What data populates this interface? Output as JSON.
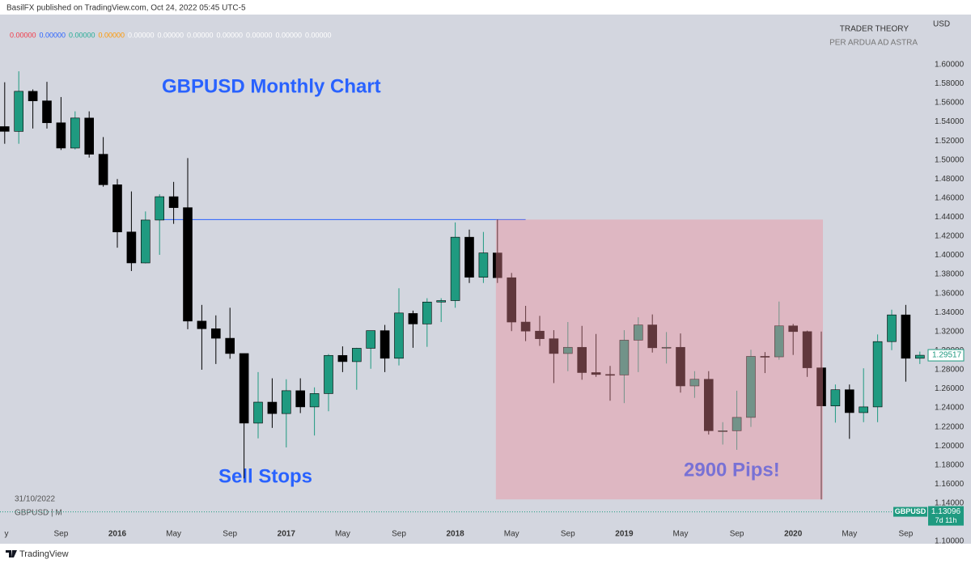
{
  "header": "BasilFX published on TradingView.com, Oct 24, 2022 05:45 UTC-5",
  "footer": "TradingView",
  "watermark": [
    "TRADER THEORY",
    "PER ARDUA AD ASTRA"
  ],
  "indicator_values": [
    {
      "label": "0.00000",
      "color": "#f23645"
    },
    {
      "label": "0.00000",
      "color": "#2962ff"
    },
    {
      "label": "0.00000",
      "color": "#22ab94"
    },
    {
      "label": "0.00000",
      "color": "#ff9800"
    },
    {
      "label": "0.00000",
      "color": "#ffffff"
    },
    {
      "label": "0.00000",
      "color": "#ffffff"
    },
    {
      "label": "0.00000",
      "color": "#ffffff"
    },
    {
      "label": "0.00000",
      "color": "#ffffff"
    },
    {
      "label": "0.00000",
      "color": "#ffffff"
    },
    {
      "label": "0.00000",
      "color": "#ffffff"
    },
    {
      "label": "0.00000",
      "color": "#ffffff"
    }
  ],
  "chart_data": {
    "type": "candlestick",
    "title": "GBPUSD Monthly Chart",
    "symbol": "GBPUSD | M",
    "date": "31/10/2022",
    "y_unit": "USD",
    "annotations": [
      "Sell Stops",
      "2900 Pips!"
    ],
    "up_color": "#1f9a80",
    "down_color": "#000000",
    "grid": false,
    "open": [
      1.535,
      1.53,
      1.572,
      1.562,
      1.539,
      1.5125,
      1.544,
      1.506,
      1.474,
      1.4245,
      1.392,
      1.437,
      1.4615,
      1.45,
      1.331,
      1.323,
      1.313,
      1.297,
      1.224,
      1.246,
      1.234,
      1.258,
      1.241,
      1.255,
      1.295,
      1.2885,
      1.3025,
      1.321,
      1.292,
      1.339,
      1.328,
      1.351,
      1.3525,
      1.419,
      1.377,
      1.4025,
      1.3765,
      1.33,
      1.3205,
      1.3125,
      1.297,
      1.3035,
      1.277,
      1.275,
      1.2745,
      1.311,
      1.327,
      1.303,
      1.3035,
      1.263,
      1.27,
      1.216,
      1.216,
      1.23,
      1.294,
      1.2935,
      1.326,
      1.32,
      1.282,
      1.242,
      1.259,
      1.235,
      1.241,
      1.3095,
      1.3375,
      1.292
    ],
    "high": [
      1.5815,
      1.593,
      1.574,
      1.582,
      1.566,
      1.551,
      1.551,
      1.524,
      1.48,
      1.467,
      1.446,
      1.464,
      1.477,
      1.502,
      1.348,
      1.337,
      1.345,
      1.297,
      1.2775,
      1.271,
      1.27,
      1.271,
      1.2615,
      1.2965,
      1.3045,
      1.303,
      1.321,
      1.327,
      1.3655,
      1.342,
      1.355,
      1.355,
      1.4345,
      1.427,
      1.4245,
      1.4375,
      1.3815,
      1.347,
      1.3365,
      1.3215,
      1.33,
      1.326,
      1.3175,
      1.284,
      1.3215,
      1.335,
      1.338,
      1.3195,
      1.318,
      1.2785,
      1.2785,
      1.225,
      1.258,
      1.301,
      1.2985,
      1.3515,
      1.328,
      1.321,
      1.32,
      1.2645,
      1.2645,
      1.2815,
      1.317,
      1.343,
      1.348,
      1.299
    ],
    "low": [
      1.517,
      1.517,
      1.533,
      1.533,
      1.5105,
      1.511,
      1.5025,
      1.472,
      1.408,
      1.3835,
      1.3915,
      1.4005,
      1.433,
      1.3225,
      1.28,
      1.286,
      1.2915,
      1.166,
      1.208,
      1.219,
      1.1985,
      1.2345,
      1.211,
      1.2365,
      1.2775,
      1.259,
      1.281,
      1.2775,
      1.2845,
      1.303,
      1.304,
      1.33,
      1.345,
      1.371,
      1.371,
      1.371,
      1.3205,
      1.31,
      1.305,
      1.266,
      1.2785,
      1.2695,
      1.2725,
      1.2475,
      1.245,
      1.2775,
      1.298,
      1.2865,
      1.256,
      1.2505,
      1.212,
      1.2015,
      1.196,
      1.22,
      1.2765,
      1.2905,
      1.2955,
      1.2725,
      1.144,
      1.2245,
      1.2075,
      1.225,
      1.225,
      1.3005,
      1.2675,
      1.286
    ],
    "close": [
      1.53,
      1.572,
      1.562,
      1.539,
      1.5125,
      1.544,
      1.506,
      1.474,
      1.4245,
      1.392,
      1.437,
      1.4615,
      1.45,
      1.331,
      1.323,
      1.313,
      1.297,
      1.224,
      1.246,
      1.234,
      1.258,
      1.241,
      1.255,
      1.295,
      1.2885,
      1.3025,
      1.321,
      1.292,
      1.3395,
      1.328,
      1.351,
      1.3525,
      1.419,
      1.377,
      1.4025,
      1.3765,
      1.33,
      1.3205,
      1.3125,
      1.297,
      1.3035,
      1.277,
      1.275,
      1.2745,
      1.311,
      1.327,
      1.303,
      1.3035,
      1.263,
      1.27,
      1.216,
      1.216,
      1.23,
      1.294,
      1.2935,
      1.326,
      1.32,
      1.282,
      1.242,
      1.259,
      1.235,
      1.241,
      1.3095,
      1.3375,
      1.292,
      1.29517
    ],
    "xticks": [
      {
        "value": 0,
        "label": "y"
      },
      {
        "value": 4,
        "label": "Sep"
      },
      {
        "value": 8,
        "label": "2016"
      },
      {
        "value": 12,
        "label": "May"
      },
      {
        "value": 16,
        "label": "Sep"
      },
      {
        "value": 20,
        "label": "2017"
      },
      {
        "value": 24,
        "label": "May"
      },
      {
        "value": 28,
        "label": "Sep"
      },
      {
        "value": 32,
        "label": "2018"
      },
      {
        "value": 36,
        "label": "May"
      },
      {
        "value": 40,
        "label": "Sep"
      },
      {
        "value": 44,
        "label": "2019"
      },
      {
        "value": 48,
        "label": "May"
      },
      {
        "value": 52,
        "label": "Sep"
      },
      {
        "value": 56,
        "label": "2020"
      },
      {
        "value": 60,
        "label": "May"
      },
      {
        "value": 64,
        "label": "Sep"
      }
    ],
    "ylim": [
      1.0975,
      1.6525
    ],
    "yticks": [
      {
        "value": 1.1,
        "label": "1.10000"
      },
      {
        "value": 1.12,
        "label": "1.12000"
      },
      {
        "value": 1.14,
        "label": "1.14000"
      },
      {
        "value": 1.16,
        "label": "1.16000"
      },
      {
        "value": 1.18,
        "label": "1.18000"
      },
      {
        "value": 1.2,
        "label": "1.20000"
      },
      {
        "value": 1.22,
        "label": "1.22000"
      },
      {
        "value": 1.24,
        "label": "1.24000"
      },
      {
        "value": 1.26,
        "label": "1.26000"
      },
      {
        "value": 1.28,
        "label": "1.28000"
      },
      {
        "value": 1.3,
        "label": "1.30000"
      },
      {
        "value": 1.32,
        "label": "1.32000"
      },
      {
        "value": 1.34,
        "label": "1.34000"
      },
      {
        "value": 1.36,
        "label": "1.36000"
      },
      {
        "value": 1.38,
        "label": "1.38000"
      },
      {
        "value": 1.4,
        "label": "1.40000"
      },
      {
        "value": 1.42,
        "label": "1.42000"
      },
      {
        "value": 1.44,
        "label": "1.44000"
      },
      {
        "value": 1.46,
        "label": "1.46000"
      },
      {
        "value": 1.48,
        "label": "1.48000"
      },
      {
        "value": 1.5,
        "label": "1.50000"
      },
      {
        "value": 1.52,
        "label": "1.52000"
      },
      {
        "value": 1.54,
        "label": "1.54000"
      },
      {
        "value": 1.56,
        "label": "1.56000"
      },
      {
        "value": 1.58,
        "label": "1.58000"
      },
      {
        "value": 1.6,
        "label": "1.60000"
      }
    ],
    "hline": {
      "value": 1.4375,
      "from": 11,
      "to": 37,
      "color": "#2962ff"
    },
    "zone": {
      "from": 35,
      "to": 58,
      "top": 1.4375,
      "bottom": 1.144,
      "color": "#f08a96"
    },
    "price_line": {
      "name": "GBPUSD",
      "value": 1.13096,
      "countdown": "7d 11h",
      "color": "#1f9a80"
    }
  }
}
